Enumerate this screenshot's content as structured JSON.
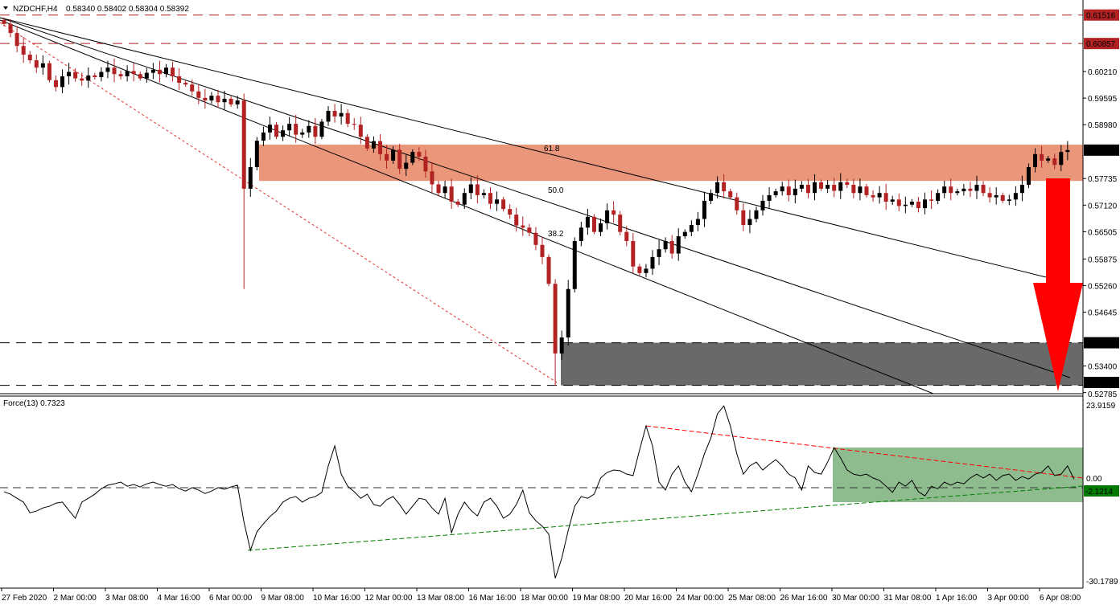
{
  "header": {
    "symbol_label": "NZDCHF,H4",
    "ohlc": "0.58340 0.58402 0.58304 0.58392"
  },
  "indicator": {
    "label": "Force(13) 0.7323"
  },
  "colors": {
    "bull": "#000000",
    "bear": "#b22222",
    "resistance_zone": "#e9967a",
    "support_zone": "#696969",
    "force_zone": "#8fbc8f",
    "arrow": "#ff0000",
    "price_tag": "#000000",
    "level_tag": "#b22222",
    "force_tag": "#007a00"
  },
  "chart_data": [
    {
      "type": "candlestick",
      "title": "NZDCHF,H4",
      "ylim": [
        0.52785,
        0.618
      ],
      "price_ticks": [
        "0.60210",
        "0.59595",
        "0.58980",
        "0.57735",
        "0.57120",
        "0.56505",
        "0.55875",
        "0.55260",
        "0.54645",
        "0.53400",
        "0.52785"
      ],
      "time_labels": [
        "27 Feb 2020",
        "2 Mar 00:00",
        "3 Mar 08:00",
        "4 Mar 16:00",
        "6 Mar 00:00",
        "9 Mar 08:00",
        "10 Mar 16:00",
        "12 Mar 00:00",
        "13 Mar 08:00",
        "16 Mar 16:00",
        "18 Mar 00:00",
        "19 Mar 08:00",
        "20 Mar 16:00",
        "24 Mar 00:00",
        "25 Mar 08:00",
        "26 Mar 16:00",
        "30 Mar 00:00",
        "31 Mar 08:00",
        "1 Apr 16:00",
        "3 Apr 00:00",
        "6 Apr 08:00"
      ],
      "closes": [
        0.6131,
        0.611,
        0.608,
        0.606,
        0.6047,
        0.603,
        0.604,
        0.6001,
        0.5985,
        0.601,
        0.602,
        0.6005,
        0.6,
        0.6012,
        0.6008,
        0.602,
        0.603,
        0.6015,
        0.601,
        0.6022,
        0.6015,
        0.6005,
        0.6018,
        0.6025,
        0.6015,
        0.603,
        0.601,
        0.5995,
        0.5991,
        0.5975,
        0.596,
        0.5954,
        0.5965,
        0.595,
        0.5958,
        0.5945,
        0.5954,
        0.575,
        0.58,
        0.5861,
        0.588,
        0.5898,
        0.587,
        0.5885,
        0.59,
        0.5875,
        0.588,
        0.5895,
        0.587,
        0.5905,
        0.593,
        0.5917,
        0.5925,
        0.59,
        0.5898,
        0.587,
        0.5843,
        0.586,
        0.583,
        0.5815,
        0.584,
        0.5796,
        0.581,
        0.5835,
        0.5824,
        0.579,
        0.576,
        0.574,
        0.5755,
        0.572,
        0.5713,
        0.574,
        0.576,
        0.5735,
        0.574,
        0.5715,
        0.5725,
        0.5703,
        0.569,
        0.5665,
        0.566,
        0.5648,
        0.562,
        0.5592,
        0.553,
        0.5369,
        0.5406,
        0.5518,
        0.5629,
        0.566,
        0.5685,
        0.565,
        0.567,
        0.57,
        0.569,
        0.565,
        0.5629,
        0.557,
        0.5555,
        0.5565,
        0.5592,
        0.561,
        0.5629,
        0.56,
        0.564,
        0.565,
        0.5666,
        0.568,
        0.5722,
        0.574,
        0.5765,
        0.5744,
        0.573,
        0.57,
        0.5666,
        0.568,
        0.57,
        0.5722,
        0.5735,
        0.5744,
        0.5755,
        0.5735,
        0.575,
        0.5759,
        0.574,
        0.5765,
        0.575,
        0.5759,
        0.5745,
        0.5765,
        0.5759,
        0.574,
        0.5755,
        0.5735,
        0.573,
        0.574,
        0.572,
        0.5725,
        0.571,
        0.5713,
        0.572,
        0.5705,
        0.5725,
        0.5722,
        0.574,
        0.5755,
        0.574,
        0.5744,
        0.575,
        0.5745,
        0.5759,
        0.574,
        0.573,
        0.5735,
        0.5722,
        0.5725,
        0.574,
        0.5759,
        0.58,
        0.583,
        0.5815,
        0.582,
        0.5805,
        0.5835,
        0.58392
      ],
      "extreme_lows": {
        "37": 0.5518,
        "85": 0.5295
      },
      "levels": [
        {
          "value": 0.61516,
          "label": "0.61516",
          "style": "red-dashed"
        },
        {
          "value": 0.60857,
          "label": "0.60857",
          "style": "red-dashed"
        },
        {
          "value": 0.53938,
          "label": "0.53938",
          "style": "black-dashed"
        },
        {
          "value": 0.52953,
          "label": "0.52953",
          "style": "black-dashed"
        }
      ],
      "current_price": "0.58392",
      "resistance_zone": [
        0.5768,
        0.5852
      ],
      "support_zone": [
        0.52953,
        0.53938
      ],
      "fib_labels": [
        "61.8",
        "50.0",
        "38.2"
      ],
      "arrow": "down"
    },
    {
      "type": "line",
      "title": "Force(13) 0.7323",
      "ylim": [
        -30.1789,
        23.9159
      ],
      "y_ticks": [
        "23.9159",
        "0.00",
        "-30.1789"
      ],
      "tag_value": "-2.1214",
      "values": [
        -2.9,
        -3.6,
        -4.8,
        -5.9,
        -9,
        -8.5,
        -7.6,
        -7.1,
        -6.2,
        -5.9,
        -8.3,
        -10.6,
        -5.9,
        -4.8,
        -3.6,
        -2,
        -1,
        -0.6,
        -0.1,
        -1.3,
        -0.8,
        -1.5,
        -0.6,
        -0.1,
        -0.8,
        -1.3,
        -0.8,
        -2,
        -2.7,
        -1.7,
        -2.4,
        -3.4,
        -2.7,
        -1.7,
        -2.2,
        -1.5,
        -1,
        -11.7,
        -19.9,
        -14.5,
        -12.2,
        -10.1,
        -8.5,
        -5.9,
        -4.8,
        -4.3,
        -5.9,
        -4.8,
        -4.3,
        -3.1,
        4.6,
        10.4,
        2.2,
        -1.3,
        -2.9,
        -4.8,
        -3.6,
        -6.6,
        -7.1,
        -5.2,
        -4.3,
        -6.6,
        -9.4,
        -7.1,
        -4.8,
        -5.2,
        -7.6,
        -9.4,
        -4.8,
        -14.8,
        -9.4,
        -5.9,
        -8.3,
        -9.9,
        -5.9,
        -4.8,
        -7.1,
        -10.6,
        -9.4,
        -6.6,
        -2.4,
        -9,
        -11.3,
        -12.9,
        -15.2,
        -28,
        -22.2,
        -14.1,
        -7.1,
        -4.3,
        -4.8,
        -3.6,
        1.1,
        2.7,
        3.4,
        3.2,
        2.2,
        1.8,
        9.2,
        16.2,
        10.4,
        -0.1,
        -2.4,
        2.2,
        4.6,
        -0.1,
        -2.9,
        2.2,
        8.1,
        12.7,
        19.7,
        22,
        16.2,
        8.1,
        2.2,
        4.6,
        5.7,
        3.4,
        5,
        6.4,
        4.6,
        2.2,
        1.1,
        -2.4,
        4.6,
        2.7,
        2.2,
        5.7,
        9.9,
        6.9,
        3.4,
        2.2,
        1.8,
        2.2,
        1.1,
        0.4,
        -1.3,
        -3.1,
        -0.1,
        -1.3,
        0.4,
        -2.9,
        -4.1,
        -1.3,
        -2,
        -0.1,
        -1,
        -0.1,
        -0.6,
        1.1,
        2.2,
        1.1,
        2.2,
        0.4,
        1.8,
        2.2,
        0.4,
        1.5,
        0.8,
        2.2,
        2.7,
        4.6,
        1.8,
        2.2,
        4.6,
        0.73
      ]
    }
  ]
}
